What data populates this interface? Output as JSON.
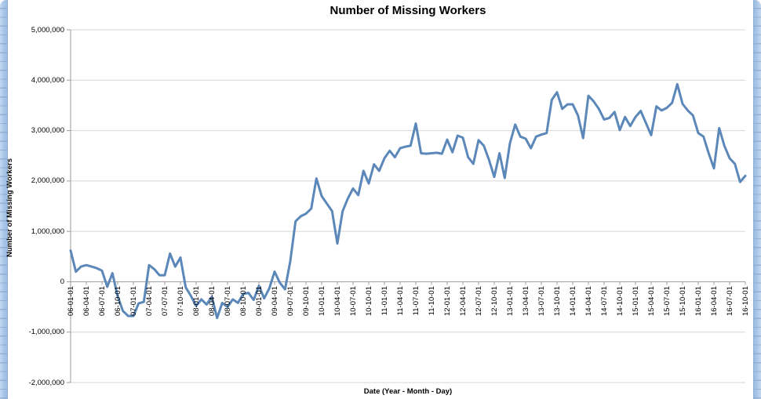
{
  "chart_data": {
    "type": "line",
    "title": "Number of Missing Workers",
    "xlabel": "Date (Year - Month - Day)",
    "ylabel": "Number of Missing Workers",
    "ylim": [
      -2000000,
      5000000
    ],
    "y_tick_step": 1000000,
    "y_tick_labels": [
      "5,000,000",
      "4,000,000",
      "3,000,000",
      "2,000,000",
      "1,000,000",
      "0",
      "-1,000,000",
      "-2,000,000"
    ],
    "x_tick_labels": [
      "06-01-01",
      "06-04-01",
      "06-07-01",
      "06-10-01",
      "07-01-01",
      "07-04-01",
      "07-07-01",
      "07-10-01",
      "08-01-01",
      "08-04-01",
      "08-07-01",
      "08-10-01",
      "09-01-01",
      "09-04-01",
      "09-07-01",
      "09-10-01",
      "10-01-01",
      "10-04-01",
      "10-07-01",
      "10-10-01",
      "11-01-01",
      "11-04-01",
      "11-07-01",
      "11-10-01",
      "12-01-01",
      "12-04-01",
      "12-07-01",
      "12-10-01",
      "13-01-01",
      "13-04-01",
      "13-07-01",
      "13-10-01",
      "14-01-01",
      "14-04-01",
      "14-07-01",
      "14-10-01",
      "15-01-01",
      "15-04-01",
      "15-07-01",
      "15-10-01",
      "16-01-01",
      "16-04-01",
      "16-07-01",
      "16-10-01"
    ],
    "x_start": "06-01-01",
    "x_interval": "monthly",
    "x_tick_every_n_points": 3,
    "grid": true,
    "legend": "none",
    "line_color": "#5B87B9",
    "gridline_color": "#D6D6D6",
    "axis_line_color": "#9B9B9B",
    "series": [
      {
        "name": "Number of Missing Workers",
        "values": [
          620000,
          200000,
          300000,
          330000,
          300000,
          270000,
          220000,
          -100000,
          170000,
          -290000,
          -580000,
          -680000,
          -680000,
          -430000,
          -400000,
          330000,
          250000,
          130000,
          130000,
          560000,
          300000,
          480000,
          -110000,
          -280000,
          -480000,
          -350000,
          -450000,
          -300000,
          -720000,
          -420000,
          -500000,
          -350000,
          -420000,
          -240000,
          -220000,
          -360000,
          -80000,
          -330000,
          -130000,
          200000,
          -20000,
          -150000,
          410000,
          1200000,
          1300000,
          1350000,
          1450000,
          2050000,
          1700000,
          1550000,
          1400000,
          760000,
          1400000,
          1650000,
          1850000,
          1720000,
          2200000,
          1950000,
          2330000,
          2200000,
          2450000,
          2600000,
          2470000,
          2650000,
          2680000,
          2700000,
          3140000,
          2550000,
          2540000,
          2550000,
          2560000,
          2540000,
          2820000,
          2570000,
          2900000,
          2860000,
          2470000,
          2340000,
          2810000,
          2700000,
          2420000,
          2080000,
          2550000,
          2060000,
          2750000,
          3120000,
          2880000,
          2840000,
          2650000,
          2880000,
          2920000,
          2950000,
          3610000,
          3760000,
          3430000,
          3520000,
          3520000,
          3300000,
          2850000,
          3690000,
          3580000,
          3430000,
          3220000,
          3250000,
          3370000,
          3010000,
          3270000,
          3090000,
          3270000,
          3390000,
          3150000,
          2910000,
          3480000,
          3400000,
          3450000,
          3550000,
          3920000,
          3530000,
          3400000,
          3300000,
          2950000,
          2880000,
          2550000,
          2250000,
          3050000,
          2700000,
          2450000,
          2340000,
          1980000,
          2100000
        ]
      }
    ]
  }
}
